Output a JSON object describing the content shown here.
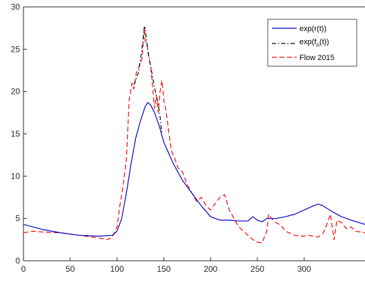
{
  "chart_data": {
    "type": "line",
    "xlim": [
      0,
      365
    ],
    "ylim": [
      0,
      30
    ],
    "x_ticks": [
      0,
      50,
      100,
      150,
      200,
      250,
      300
    ],
    "y_ticks": [
      0,
      5,
      10,
      15,
      20,
      25,
      30
    ],
    "grid": false,
    "legend_position": "top-right",
    "series": [
      {
        "name": "exp(r(t))",
        "legend_label": "exp(r(t))",
        "color": "#0000cc",
        "style": "solid",
        "x": [
          0,
          20,
          40,
          60,
          80,
          95,
          100,
          105,
          110,
          115,
          120,
          125,
          130,
          133,
          136,
          140,
          145,
          150,
          160,
          170,
          180,
          190,
          200,
          210,
          220,
          230,
          240,
          245,
          250,
          255,
          260,
          270,
          280,
          290,
          300,
          310,
          315,
          320,
          330,
          340,
          350,
          365
        ],
        "y": [
          4.3,
          3.7,
          3.3,
          3.0,
          2.9,
          3.0,
          3.5,
          5.0,
          8.0,
          11.5,
          14.5,
          16.5,
          18.2,
          18.7,
          18.4,
          17.5,
          16.0,
          14.0,
          11.5,
          9.5,
          8.0,
          6.5,
          5.2,
          4.8,
          4.8,
          4.7,
          4.7,
          5.2,
          4.8,
          4.6,
          5.0,
          5.0,
          5.2,
          5.5,
          6.0,
          6.5,
          6.7,
          6.5,
          5.8,
          5.2,
          4.8,
          4.3
        ]
      },
      {
        "name": "exp(f_n(t))",
        "legend_label": "exp(f",
        "legend_sub": "n",
        "legend_suffix": "(t))",
        "color": "#000000",
        "style": "dashdot",
        "x": [
          118,
          120,
          123,
          126,
          129,
          130,
          131,
          133,
          136,
          140,
          144,
          146,
          148
        ],
        "y": [
          20.8,
          21.3,
          22.3,
          24.5,
          27.3,
          27.6,
          26.5,
          24.8,
          23.0,
          20.5,
          18.5,
          17.0,
          15.0
        ]
      },
      {
        "name": "Flow 2015",
        "legend_label": "Flow 2015",
        "color": "#ff0000",
        "style": "dashed",
        "x": [
          0,
          10,
          20,
          40,
          60,
          80,
          90,
          95,
          100,
          103,
          106,
          110,
          113,
          116,
          118,
          121,
          124,
          127,
          129,
          130,
          132,
          134,
          136,
          138,
          140,
          142,
          144,
          146,
          148,
          150,
          152,
          155,
          158,
          162,
          165,
          170,
          175,
          180,
          185,
          190,
          195,
          200,
          205,
          210,
          215,
          220,
          225,
          230,
          235,
          240,
          245,
          250,
          255,
          260,
          262,
          265,
          270,
          275,
          280,
          290,
          300,
          305,
          310,
          315,
          320,
          325,
          328,
          332,
          335,
          340,
          345,
          350,
          355,
          365
        ],
        "y": [
          3.3,
          3.5,
          3.4,
          3.3,
          3.0,
          2.7,
          2.5,
          2.8,
          4.0,
          6.5,
          8.5,
          12.0,
          19.0,
          21.0,
          20.3,
          22.5,
          23.0,
          24.0,
          27.6,
          26.0,
          25.5,
          24.0,
          23.0,
          20.5,
          18.0,
          19.5,
          17.5,
          20.0,
          21.3,
          19.0,
          18.0,
          15.5,
          13.0,
          12.0,
          11.0,
          10.5,
          9.0,
          8.0,
          7.0,
          7.5,
          6.5,
          6.0,
          6.8,
          7.5,
          7.8,
          6.0,
          5.0,
          4.0,
          3.5,
          3.0,
          2.5,
          2.2,
          2.1,
          3.5,
          5.5,
          5.0,
          4.5,
          4.2,
          3.5,
          3.0,
          2.9,
          3.0,
          2.9,
          2.8,
          3.2,
          4.5,
          5.5,
          2.5,
          4.8,
          4.5,
          3.8,
          4.0,
          3.5,
          3.3
        ]
      }
    ]
  }
}
